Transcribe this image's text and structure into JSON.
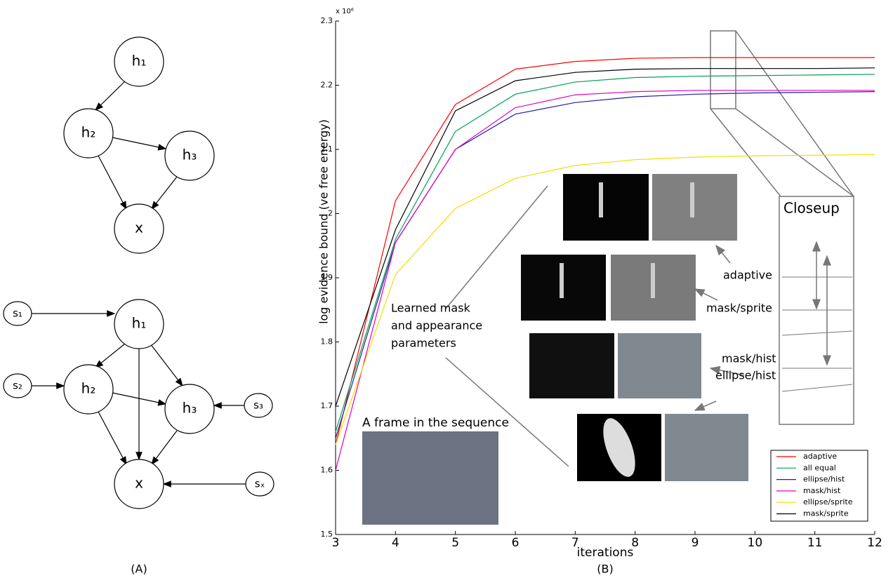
{
  "diagram": {
    "panel_label": "(A)",
    "nodes": [
      {
        "label": "h₁"
      },
      {
        "label": "h₂"
      },
      {
        "label": "h₃"
      },
      {
        "label": "x"
      },
      {
        "label": "h₁"
      },
      {
        "label": "h₂"
      },
      {
        "label": "h₃"
      },
      {
        "label": "x"
      },
      {
        "label": "s₁"
      },
      {
        "label": "s₂"
      },
      {
        "label": "s₃"
      },
      {
        "label": "sₓ"
      }
    ]
  },
  "chart_data": {
    "type": "line",
    "panel_label": "(B)",
    "xlabel": "iterations",
    "ylabel": "log evidence bound (ve free energy)",
    "y_multiplier": "x 10⁶",
    "x": [
      3,
      4,
      5,
      6,
      7,
      8,
      9,
      10,
      11,
      12
    ],
    "xlim": [
      3,
      12
    ],
    "xticks": [
      3,
      4,
      5,
      6,
      7,
      8,
      9,
      10,
      11,
      12
    ],
    "ylim": [
      1.5,
      2.3
    ],
    "yticks": [
      1.5,
      1.6,
      1.7,
      1.8,
      1.9,
      2,
      2.1,
      2.2,
      2.3
    ],
    "legend": "lower right",
    "series": [
      {
        "name": "adaptive",
        "color": "#ff0000",
        "values": [
          1.64,
          2.02,
          2.17,
          2.225,
          2.237,
          2.242,
          2.243,
          2.243,
          2.243,
          2.243
        ]
      },
      {
        "name": "all equal",
        "color": "#00a050",
        "values": [
          1.66,
          1.96,
          2.128,
          2.186,
          2.205,
          2.212,
          2.214,
          2.215,
          2.216,
          2.217
        ]
      },
      {
        "name": "ellipse/hist",
        "color": "#2020a0",
        "values": [
          1.65,
          1.955,
          2.1,
          2.155,
          2.173,
          2.182,
          2.186,
          2.188,
          2.189,
          2.19
        ]
      },
      {
        "name": "mask/hist",
        "color": "#e000c0",
        "values": [
          1.6,
          1.955,
          2.1,
          2.165,
          2.185,
          2.19,
          2.192,
          2.192,
          2.192,
          2.192
        ]
      },
      {
        "name": "ellipse/sprite",
        "color": "#f0e000",
        "values": [
          1.64,
          1.905,
          2.008,
          2.055,
          2.075,
          2.084,
          2.088,
          2.09,
          2.091,
          2.092
        ]
      },
      {
        "name": "mask/sprite",
        "color": "#000000",
        "values": [
          1.7,
          1.975,
          2.16,
          2.207,
          2.22,
          2.225,
          2.226,
          2.226,
          2.226,
          2.227
        ]
      }
    ],
    "annotations": [
      "A frame in the sequence",
      "Learned mask",
      "and appearance",
      "parameters",
      "Closeup",
      "adaptive",
      "mask/sprite",
      "mask/hist",
      "ellipse/hist"
    ]
  }
}
